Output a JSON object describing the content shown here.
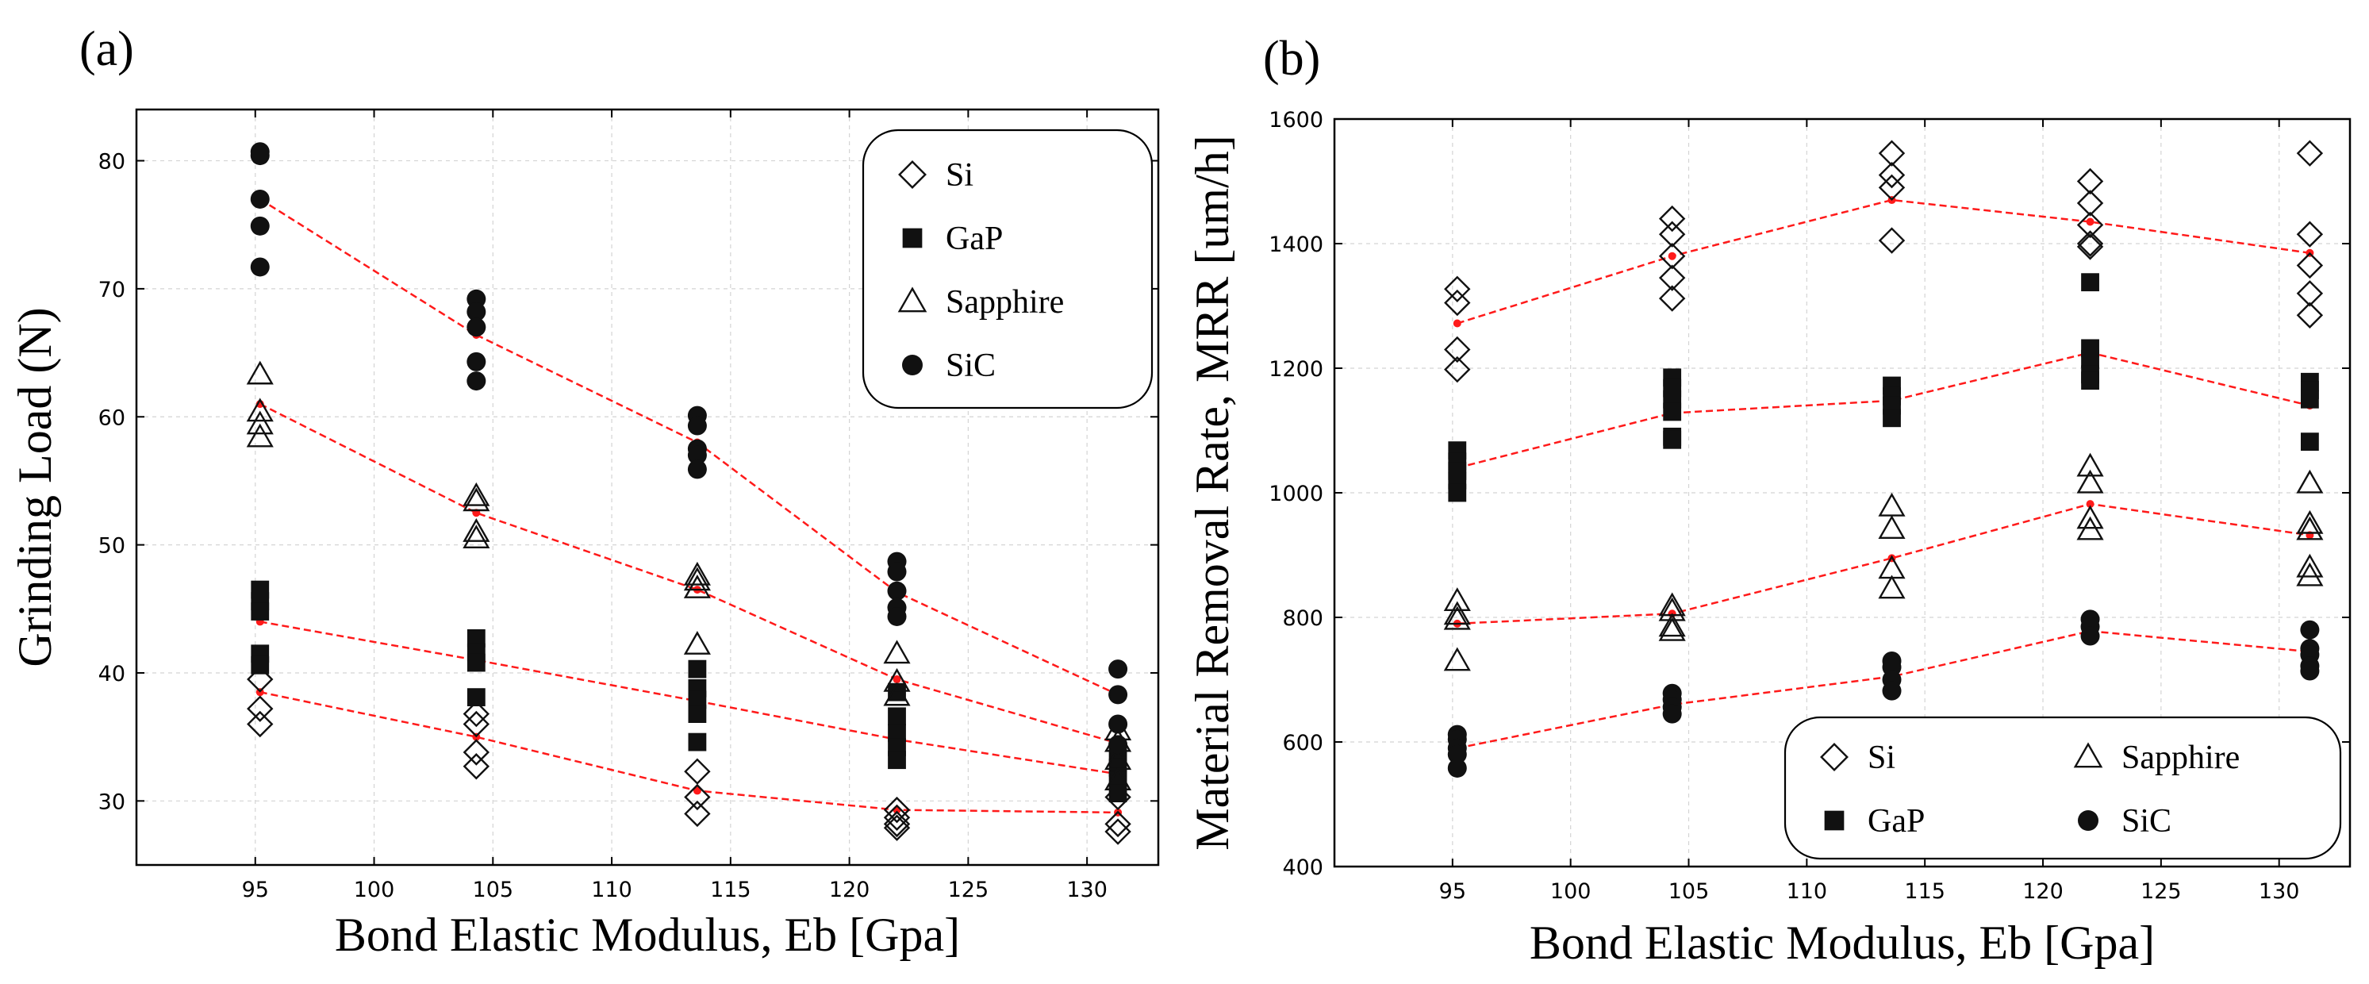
{
  "chart_data": [
    {
      "id": "a",
      "panel_label": "(a)",
      "type": "scatter",
      "title": "",
      "xlabel": "Bond Elastic Modulus, Eb [Gpa]",
      "ylabel": "Grinding Load (N)",
      "xlim": [
        90,
        133
      ],
      "ylim": [
        25,
        84
      ],
      "xticks": [
        95,
        100,
        105,
        110,
        115,
        120,
        125,
        130
      ],
      "yticks": [
        30,
        40,
        50,
        60,
        70,
        80
      ],
      "grid": true,
      "legend_position": "top-right",
      "legend_layout": "one-column",
      "legend_order": [
        "Si",
        "GaP",
        "Sapphire",
        "SiC"
      ],
      "series": [
        {
          "name": "Si",
          "marker": "diamond",
          "fill": "open",
          "points": [
            [
              95.2,
              39.5
            ],
            [
              95.2,
              37.2
            ],
            [
              95.2,
              36.0
            ],
            [
              104.3,
              36.8
            ],
            [
              104.3,
              36.0
            ],
            [
              104.3,
              33.8
            ],
            [
              104.3,
              32.7
            ],
            [
              113.6,
              32.3
            ],
            [
              113.6,
              30.3
            ],
            [
              113.6,
              29.0
            ],
            [
              122.0,
              29.3
            ],
            [
              122.0,
              28.7
            ],
            [
              122.0,
              28.2
            ],
            [
              122.0,
              27.9
            ],
            [
              131.3,
              30.3
            ],
            [
              131.3,
              28.2
            ],
            [
              131.3,
              27.6
            ]
          ],
          "trend": [
            [
              95.2,
              38.5
            ],
            [
              104.3,
              35.0
            ],
            [
              113.6,
              30.8
            ],
            [
              122.0,
              29.3
            ],
            [
              131.3,
              29.1
            ]
          ]
        },
        {
          "name": "GaP",
          "marker": "square",
          "fill": "solid",
          "points": [
            [
              95.2,
              46.5
            ],
            [
              95.2,
              45.6
            ],
            [
              95.2,
              44.8
            ],
            [
              95.2,
              41.5
            ],
            [
              95.2,
              40.6
            ],
            [
              104.3,
              42.7
            ],
            [
              104.3,
              41.6
            ],
            [
              104.3,
              40.8
            ],
            [
              104.3,
              38.1
            ],
            [
              113.6,
              40.3
            ],
            [
              113.6,
              38.8
            ],
            [
              113.6,
              37.9
            ],
            [
              113.6,
              36.8
            ],
            [
              113.6,
              34.6
            ],
            [
              122.0,
              38.5
            ],
            [
              122.0,
              36.6
            ],
            [
              122.0,
              35.3
            ],
            [
              122.0,
              34.2
            ],
            [
              122.0,
              33.2
            ],
            [
              131.3,
              33.5
            ],
            [
              131.3,
              32.6
            ],
            [
              131.3,
              31.6
            ],
            [
              131.3,
              30.6
            ]
          ],
          "trend": [
            [
              95.2,
              44.0
            ],
            [
              104.3,
              41.0
            ],
            [
              113.6,
              37.8
            ],
            [
              122.0,
              34.8
            ],
            [
              131.3,
              32.1
            ]
          ]
        },
        {
          "name": "Sapphire",
          "marker": "triangle",
          "fill": "open",
          "points": [
            [
              95.2,
              63.3
            ],
            [
              95.2,
              60.4
            ],
            [
              95.2,
              59.4
            ],
            [
              95.2,
              58.4
            ],
            [
              104.3,
              53.8
            ],
            [
              104.3,
              53.4
            ],
            [
              104.3,
              51.0
            ],
            [
              104.3,
              50.5
            ],
            [
              113.6,
              47.6
            ],
            [
              113.6,
              47.2
            ],
            [
              113.6,
              46.6
            ],
            [
              113.6,
              42.2
            ],
            [
              122.0,
              41.5
            ],
            [
              122.0,
              39.3
            ],
            [
              122.0,
              38.2
            ],
            [
              131.3,
              35.5
            ],
            [
              131.3,
              34.6
            ],
            [
              131.3,
              33.2
            ],
            [
              131.3,
              31.6
            ]
          ],
          "trend": [
            [
              95.2,
              61.0
            ],
            [
              104.3,
              52.5
            ],
            [
              113.6,
              46.5
            ],
            [
              122.0,
              39.5
            ],
            [
              131.3,
              34.5
            ]
          ]
        },
        {
          "name": "SiC",
          "marker": "circle",
          "fill": "solid",
          "points": [
            [
              95.2,
              80.7
            ],
            [
              95.2,
              80.4
            ],
            [
              95.2,
              77.0
            ],
            [
              95.2,
              74.9
            ],
            [
              95.2,
              71.7
            ],
            [
              104.3,
              69.2
            ],
            [
              104.3,
              68.2
            ],
            [
              104.3,
              67.0
            ],
            [
              104.3,
              64.3
            ],
            [
              104.3,
              62.8
            ],
            [
              113.6,
              60.1
            ],
            [
              113.6,
              59.3
            ],
            [
              113.6,
              57.5
            ],
            [
              113.6,
              57.0
            ],
            [
              113.6,
              55.9
            ],
            [
              122.0,
              48.7
            ],
            [
              122.0,
              47.9
            ],
            [
              122.0,
              46.4
            ],
            [
              122.0,
              45.1
            ],
            [
              122.0,
              44.4
            ],
            [
              131.3,
              40.3
            ],
            [
              131.3,
              38.3
            ],
            [
              131.3,
              36.0
            ],
            [
              131.3,
              34.4
            ]
          ],
          "trend": [
            [
              95.2,
              77.0
            ],
            [
              104.3,
              66.4
            ],
            [
              113.6,
              58.0
            ],
            [
              122.0,
              46.3
            ],
            [
              131.3,
              38.3
            ]
          ]
        }
      ]
    },
    {
      "id": "b",
      "panel_label": "(b)",
      "type": "scatter",
      "title": "",
      "xlabel": "Bond Elastic Modulus, Eb [Gpa]",
      "ylabel": "Material Removal Rate, MRR [um/h]",
      "xlim": [
        90,
        133
      ],
      "ylim": [
        400,
        1600
      ],
      "xticks": [
        95,
        100,
        105,
        110,
        115,
        120,
        125,
        130
      ],
      "yticks": [
        400,
        600,
        800,
        1000,
        1200,
        1400,
        1600
      ],
      "grid": true,
      "legend_position": "bottom-right",
      "legend_layout": "two-column",
      "legend_order": [
        "Si",
        "Sapphire",
        "GaP",
        "SiC"
      ],
      "series": [
        {
          "name": "Si",
          "marker": "diamond",
          "fill": "open",
          "points": [
            [
              95.2,
              1327
            ],
            [
              95.2,
              1305
            ],
            [
              95.2,
              1230
            ],
            [
              95.2,
              1198
            ],
            [
              104.3,
              1440
            ],
            [
              104.3,
              1415
            ],
            [
              104.3,
              1380
            ],
            [
              104.3,
              1345
            ],
            [
              104.3,
              1312
            ],
            [
              113.6,
              1545
            ],
            [
              113.6,
              1510
            ],
            [
              113.6,
              1490
            ],
            [
              113.6,
              1405
            ],
            [
              122.0,
              1500
            ],
            [
              122.0,
              1465
            ],
            [
              122.0,
              1430
            ],
            [
              122.0,
              1400
            ],
            [
              122.0,
              1395
            ],
            [
              131.3,
              1545
            ],
            [
              131.3,
              1415
            ],
            [
              131.3,
              1365
            ],
            [
              131.3,
              1320
            ],
            [
              131.3,
              1285
            ]
          ],
          "trend": [
            [
              95.2,
              1272
            ],
            [
              104.3,
              1380
            ],
            [
              113.6,
              1470
            ],
            [
              122.0,
              1435
            ],
            [
              131.3,
              1385
            ]
          ]
        },
        {
          "name": "GaP",
          "marker": "square",
          "fill": "solid",
          "points": [
            [
              95.2,
              1068
            ],
            [
              95.2,
              1050
            ],
            [
              95.2,
              1035
            ],
            [
              95.2,
              1020
            ],
            [
              95.2,
              1000
            ],
            [
              104.3,
              1185
            ],
            [
              104.3,
              1168
            ],
            [
              104.3,
              1150
            ],
            [
              104.3,
              1130
            ],
            [
              104.3,
              1090
            ],
            [
              104.3,
              1085
            ],
            [
              113.6,
              1172
            ],
            [
              113.6,
              1155
            ],
            [
              113.6,
              1140
            ],
            [
              113.6,
              1120
            ],
            [
              122.0,
              1338
            ],
            [
              122.0,
              1232
            ],
            [
              122.0,
              1215
            ],
            [
              122.0,
              1190
            ],
            [
              122.0,
              1180
            ],
            [
              131.3,
              1178
            ],
            [
              131.3,
              1165
            ],
            [
              131.3,
              1150
            ],
            [
              131.3,
              1082
            ]
          ],
          "trend": [
            [
              95.2,
              1040
            ],
            [
              104.3,
              1128
            ],
            [
              113.6,
              1148
            ],
            [
              122.0,
              1225
            ],
            [
              131.3,
              1140
            ]
          ]
        },
        {
          "name": "Sapphire",
          "marker": "triangle",
          "fill": "open",
          "points": [
            [
              95.2,
              826
            ],
            [
              95.2,
              804
            ],
            [
              95.2,
              796
            ],
            [
              95.2,
              730
            ],
            [
              104.3,
              818
            ],
            [
              104.3,
              810
            ],
            [
              104.3,
              785
            ],
            [
              104.3,
              778
            ],
            [
              113.6,
              978
            ],
            [
              113.6,
              942
            ],
            [
              113.6,
              878
            ],
            [
              113.6,
              846
            ],
            [
              122.0,
              1042
            ],
            [
              122.0,
              1015
            ],
            [
              122.0,
              958
            ],
            [
              122.0,
              940
            ],
            [
              131.3,
              1015
            ],
            [
              131.3,
              950
            ],
            [
              131.3,
              940
            ],
            [
              131.3,
              880
            ],
            [
              131.3,
              866
            ]
          ],
          "trend": [
            [
              95.2,
              790
            ],
            [
              104.3,
              806
            ],
            [
              113.6,
              895
            ],
            [
              122.0,
              982
            ],
            [
              131.3,
              932
            ]
          ]
        },
        {
          "name": "SiC",
          "marker": "circle",
          "fill": "solid",
          "points": [
            [
              95.2,
              612
            ],
            [
              95.2,
              604
            ],
            [
              95.2,
              590
            ],
            [
              95.2,
              580
            ],
            [
              95.2,
              558
            ],
            [
              104.3,
              678
            ],
            [
              104.3,
              668
            ],
            [
              104.3,
              656
            ],
            [
              104.3,
              645
            ],
            [
              113.6,
              730
            ],
            [
              113.6,
              720
            ],
            [
              113.6,
              700
            ],
            [
              113.6,
              682
            ],
            [
              122.0,
              797
            ],
            [
              122.0,
              785
            ],
            [
              122.0,
              770
            ],
            [
              131.3,
              780
            ],
            [
              131.3,
              750
            ],
            [
              131.3,
              740
            ],
            [
              131.3,
              722
            ],
            [
              131.3,
              714
            ]
          ],
          "trend": [
            [
              95.2,
              590
            ],
            [
              104.3,
              660
            ],
            [
              113.6,
              705
            ],
            [
              122.0,
              778
            ],
            [
              131.3,
              745
            ]
          ]
        }
      ]
    }
  ]
}
